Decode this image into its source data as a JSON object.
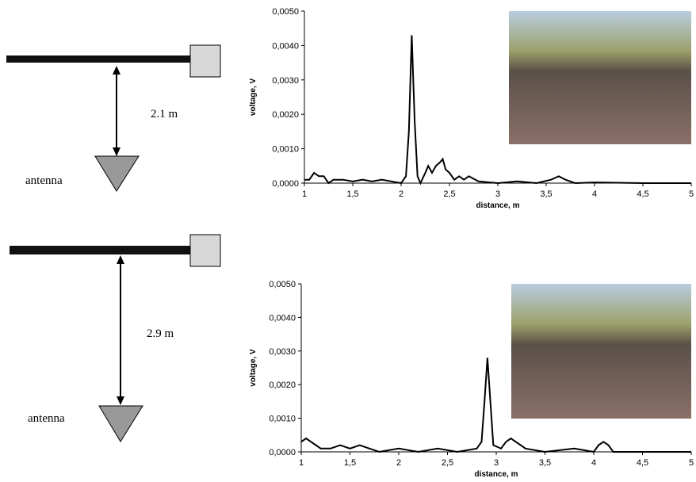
{
  "chart_data": [
    {
      "type": "line",
      "xlabel": "distance, m",
      "ylabel": "voltage, V",
      "x": [
        1.0,
        1.05,
        1.1,
        1.15,
        1.2,
        1.25,
        1.3,
        1.4,
        1.5,
        1.6,
        1.7,
        1.8,
        1.9,
        2.0,
        2.05,
        2.08,
        2.11,
        2.14,
        2.17,
        2.2,
        2.25,
        2.28,
        2.32,
        2.36,
        2.4,
        2.43,
        2.46,
        2.5,
        2.55,
        2.6,
        2.65,
        2.7,
        2.8,
        3.0,
        3.2,
        3.4,
        3.55,
        3.63,
        3.7,
        3.8,
        4.0,
        4.5,
        5.0
      ],
      "series": [
        {
          "color": "#000000",
          "values": [
            0.0001,
            0.0001,
            0.0003,
            0.0002,
            0.0002,
            0.0,
            0.0001,
            0.0001,
            5e-05,
            0.0001,
            5e-05,
            0.0001,
            5e-05,
            0.0,
            0.0002,
            0.0015,
            0.0043,
            0.0018,
            0.0002,
            0.0,
            0.0003,
            0.0005,
            0.0003,
            0.0005,
            0.0006,
            0.0007,
            0.0004,
            0.0003,
            0.0001,
            0.0002,
            0.0001,
            0.0002,
            5e-05,
            0.0,
            5e-05,
            0.0,
            0.0001,
            0.0002,
            0.0001,
            0.0,
            2e-05,
            0.0,
            0.0
          ]
        }
      ],
      "xlim": [
        1,
        5
      ],
      "ylim": [
        0,
        0.005
      ],
      "xticks": [
        1,
        {
          "value": 1.5,
          "label": "1,5"
        },
        2,
        {
          "value": 2.5,
          "label": "2,5"
        },
        3,
        {
          "value": 3.5,
          "label": "3,5"
        },
        4,
        {
          "value": 4.5,
          "label": "4,5"
        },
        5
      ],
      "yticks": [
        {
          "value": 0,
          "label": "0,0000"
        },
        {
          "value": 0.001,
          "label": "0,0010"
        },
        {
          "value": 0.002,
          "label": "0,0020"
        },
        {
          "value": 0.003,
          "label": "0,0030"
        },
        {
          "value": 0.004,
          "label": "0,0040"
        },
        {
          "value": 0.005,
          "label": "0,0050"
        }
      ]
    },
    {
      "type": "line",
      "xlabel": "distance, m",
      "ylabel": "voltage, V",
      "x": [
        1.0,
        1.05,
        1.1,
        1.15,
        1.2,
        1.3,
        1.4,
        1.5,
        1.6,
        1.7,
        1.8,
        2.0,
        2.2,
        2.4,
        2.6,
        2.8,
        2.85,
        2.88,
        2.91,
        2.94,
        2.97,
        3.05,
        3.1,
        3.15,
        3.2,
        3.25,
        3.3,
        3.5,
        3.8,
        4.0,
        4.05,
        4.1,
        4.15,
        4.2,
        4.5,
        5.0
      ],
      "series": [
        {
          "color": "#000000",
          "values": [
            0.0003,
            0.0004,
            0.0003,
            0.0002,
            0.0001,
            0.0001,
            0.0002,
            0.0001,
            0.0002,
            0.0001,
            0.0,
            0.0001,
            0.0,
            0.0001,
            0.0,
            0.0001,
            0.0003,
            0.0015,
            0.0028,
            0.0015,
            0.0002,
            0.0001,
            0.0003,
            0.0004,
            0.0003,
            0.0002,
            0.0001,
            0.0,
            0.0001,
            0.0,
            0.0002,
            0.0003,
            0.0002,
            0.0,
            0.0,
            0.0
          ]
        }
      ],
      "xlim": [
        1,
        5
      ],
      "ylim": [
        0,
        0.005
      ],
      "xticks": [
        1,
        {
          "value": 1.5,
          "label": "1,5"
        },
        2,
        {
          "value": 2.5,
          "label": "2,5"
        },
        3,
        {
          "value": 3.5,
          "label": "3,5"
        },
        4,
        {
          "value": 4.5,
          "label": "4,5"
        },
        5
      ],
      "yticks": [
        {
          "value": 0,
          "label": "0,0000"
        },
        {
          "value": 0.001,
          "label": "0,0010"
        },
        {
          "value": 0.002,
          "label": "0,0020"
        },
        {
          "value": 0.003,
          "label": "0,0030"
        },
        {
          "value": 0.004,
          "label": "0,0040"
        },
        {
          "value": 0.005,
          "label": "0,0050"
        }
      ]
    }
  ],
  "diagrams": [
    {
      "distance": "2.1  m",
      "label": "antenna"
    },
    {
      "distance": "2.9  m",
      "label": "antenna"
    }
  ]
}
